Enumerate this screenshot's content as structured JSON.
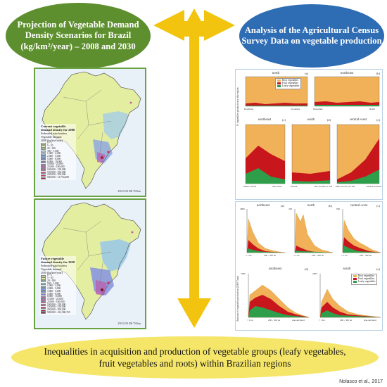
{
  "left_title": "Projection of Vegetable Demand Density Scenarios for Brazil (kg/km²/year) – 2008 and 2030",
  "right_title": "Analysis of the Agricultural Census Survey Data on vegetable production",
  "bottom_text": "Inequalities in acquisition and production of vegetable groups (leafy vegetables, fruit vegetables and roots) within Brazilian regions",
  "credit": "Nolasco et al., 2017",
  "colors": {
    "green_bubble": "#5e8f2f",
    "blue_bubble": "#2e6cb3",
    "arrow": "#f2c40f",
    "oval": "#f5e66a",
    "root": "#f0b158",
    "fruit": "#c8161d",
    "leafy": "#2f9e4a"
  },
  "map_top": {
    "legend_title": "Current vegetable\ndemand density for 2008",
    "legend_sub": "Federated state borders",
    "legend_head": "Vegetable demand\n2008 (kg/km²/year)",
    "classes": [
      "0 - 5",
      "5 - 20",
      "20 - 300",
      "300 - 1,000",
      "1,000 - 2,000",
      "2,000 - 5,000",
      "5,000 - 8,000",
      "8,000 - 10,000",
      "10,000 - 25,000",
      "25,000 - 100,000",
      "100,000 - 150,000",
      "150,000 - 250,000",
      "250,000 - 500,000",
      "500,000 - 13,754,408"
    ],
    "scale": "250   0   250   500   750 km"
  },
  "map_bottom": {
    "legend_title": "Future vegetable\ndemand density for 2030",
    "legend_sub": "Federated state borders",
    "legend_head": "Vegetable demand\n2030 (kg/km²/year)",
    "classes": [
      "0 - 5",
      "5 - 20",
      "20 - 500",
      "500 - 1,000",
      "1,000 - 2,000",
      "2,000 - 3,000",
      "3,000 - 5,000",
      "5,000 - 8,000",
      "8,000 - 15,000",
      "15,000 - 25,000",
      "25,000 - 100,000",
      "100,000 - 150,000",
      "150,000 - 250,000",
      "250,000 - 500,000",
      "500,000 - 412,586,765"
    ],
    "scale": "250   0   250   500   750 km"
  },
  "map_class_colors": [
    "#f5f7a8",
    "#d9ef9a",
    "#b5e3b0",
    "#9ed3d8",
    "#8fbfe6",
    "#7ea4e0",
    "#7a8ad9",
    "#8a78cf",
    "#a36ec4",
    "#b865b5",
    "#c85aa2",
    "#d24e8c",
    "#c93a64",
    "#a8203d",
    "#7d1a2a"
  ],
  "census_top": {
    "legend": [
      "Root vegetables",
      "Fruit vegetables",
      "Leafy vegetables"
    ],
    "y_label": "% vegetables production in the region",
    "charts": [
      {
        "title": "north",
        "letter": "(a)",
        "labels": [
          "Rondônia",
          "Acre",
          "Amazonas",
          "Roraima",
          "Pará",
          "Amapá",
          "Tocantins"
        ]
      },
      {
        "title": "northeast",
        "letter": "(b)",
        "labels": [
          "Maranhão",
          "Piauí",
          "Ceará",
          "Rio Grande do Norte",
          "Paraíba",
          "Pernambuco",
          "Alagoas",
          "Sergipe",
          "Bahia"
        ]
      },
      {
        "title": "southeast",
        "letter": "(c)",
        "labels": [
          "Minas Gerais",
          "Espírito Santo",
          "Rio de Janeiro",
          "São Paulo"
        ]
      },
      {
        "title": "south",
        "letter": "(d)",
        "labels": [
          "Paraná",
          "Santa Catarina",
          "Rio Grande do Sul"
        ]
      },
      {
        "title": "central-west",
        "letter": "(e)",
        "labels": [
          "Mato Grosso do Sul",
          "Mato Grosso",
          "Goiás",
          "Distrito Federal"
        ]
      }
    ]
  },
  "census_bottom": {
    "legend": [
      "Root vegetables",
      "Fruit vegetables",
      "Leafy vegetables"
    ],
    "y_label": "Amount of vegetable production (1000 Tons)",
    "charts": [
      {
        "title": "northeast",
        "letter": "(a)",
        "ymax": "2800"
      },
      {
        "title": "north",
        "letter": "(b)",
        "ymax": "200"
      },
      {
        "title": "central-west",
        "letter": "(c)",
        "ymax": "900"
      },
      {
        "title": "southeast",
        "letter": "(d)",
        "ymax": "7000"
      },
      {
        "title": "south",
        "letter": "(e)",
        "ymax": "2000"
      }
    ],
    "x_labels": [
      "< 1 ha",
      "10 - 20 ha",
      "200 - 500 ha",
      "> 2500 ha",
      "non-declared"
    ]
  }
}
